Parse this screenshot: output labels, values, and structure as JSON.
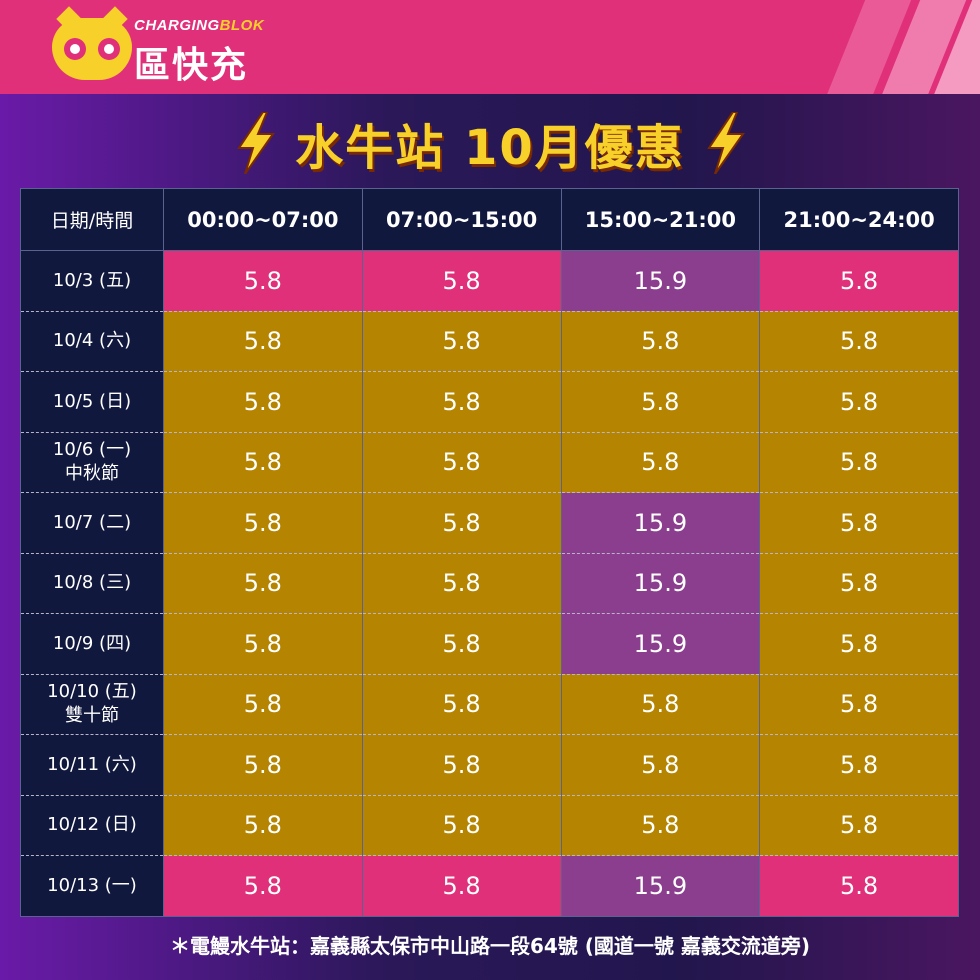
{
  "brand": {
    "en_prefix": "CHARGING",
    "en_suffix": "BLOK",
    "zh": "區快充"
  },
  "title": "水牛站 10月優惠",
  "icons": {
    "bolt": "lightning-bolt-icon",
    "logo": "charging-blok-mascot-icon"
  },
  "colors": {
    "header": "#e0307a",
    "title": "#f7d02a",
    "pink": "#e0307a",
    "gold": "#b58400",
    "purple": "#8c3e8e",
    "table_bg": "#11183e"
  },
  "table": {
    "headers": [
      "日期/時間",
      "00:00~07:00",
      "07:00~15:00",
      "15:00~21:00",
      "21:00~24:00"
    ],
    "rows": [
      {
        "date": "10/3 (五)",
        "sub": "",
        "values": [
          "5.8",
          "5.8",
          "15.9",
          "5.8"
        ],
        "colors": [
          "pink",
          "pink",
          "purple",
          "pink"
        ]
      },
      {
        "date": "10/4 (六)",
        "sub": "",
        "values": [
          "5.8",
          "5.8",
          "5.8",
          "5.8"
        ],
        "colors": [
          "gold",
          "gold",
          "gold",
          "gold"
        ]
      },
      {
        "date": "10/5 (日)",
        "sub": "",
        "values": [
          "5.8",
          "5.8",
          "5.8",
          "5.8"
        ],
        "colors": [
          "gold",
          "gold",
          "gold",
          "gold"
        ]
      },
      {
        "date": "10/6 (一)",
        "sub": "中秋節",
        "values": [
          "5.8",
          "5.8",
          "5.8",
          "5.8"
        ],
        "colors": [
          "gold",
          "gold",
          "gold",
          "gold"
        ]
      },
      {
        "date": "10/7 (二)",
        "sub": "",
        "values": [
          "5.8",
          "5.8",
          "15.9",
          "5.8"
        ],
        "colors": [
          "gold",
          "gold",
          "purple",
          "gold"
        ]
      },
      {
        "date": "10/8 (三)",
        "sub": "",
        "values": [
          "5.8",
          "5.8",
          "15.9",
          "5.8"
        ],
        "colors": [
          "gold",
          "gold",
          "purple",
          "gold"
        ]
      },
      {
        "date": "10/9 (四)",
        "sub": "",
        "values": [
          "5.8",
          "5.8",
          "15.9",
          "5.8"
        ],
        "colors": [
          "gold",
          "gold",
          "purple",
          "gold"
        ]
      },
      {
        "date": "10/10 (五)",
        "sub": "雙十節",
        "values": [
          "5.8",
          "5.8",
          "5.8",
          "5.8"
        ],
        "colors": [
          "gold",
          "gold",
          "gold",
          "gold"
        ]
      },
      {
        "date": "10/11 (六)",
        "sub": "",
        "values": [
          "5.8",
          "5.8",
          "5.8",
          "5.8"
        ],
        "colors": [
          "gold",
          "gold",
          "gold",
          "gold"
        ]
      },
      {
        "date": "10/12 (日)",
        "sub": "",
        "values": [
          "5.8",
          "5.8",
          "5.8",
          "5.8"
        ],
        "colors": [
          "gold",
          "gold",
          "gold",
          "gold"
        ]
      },
      {
        "date": "10/13 (一)",
        "sub": "",
        "values": [
          "5.8",
          "5.8",
          "15.9",
          "5.8"
        ],
        "colors": [
          "pink",
          "pink",
          "purple",
          "pink"
        ]
      }
    ]
  },
  "footer": "＊電鰻水牛站：嘉義縣太保市中山路一段64號 (國道一號 嘉義交流道旁)"
}
